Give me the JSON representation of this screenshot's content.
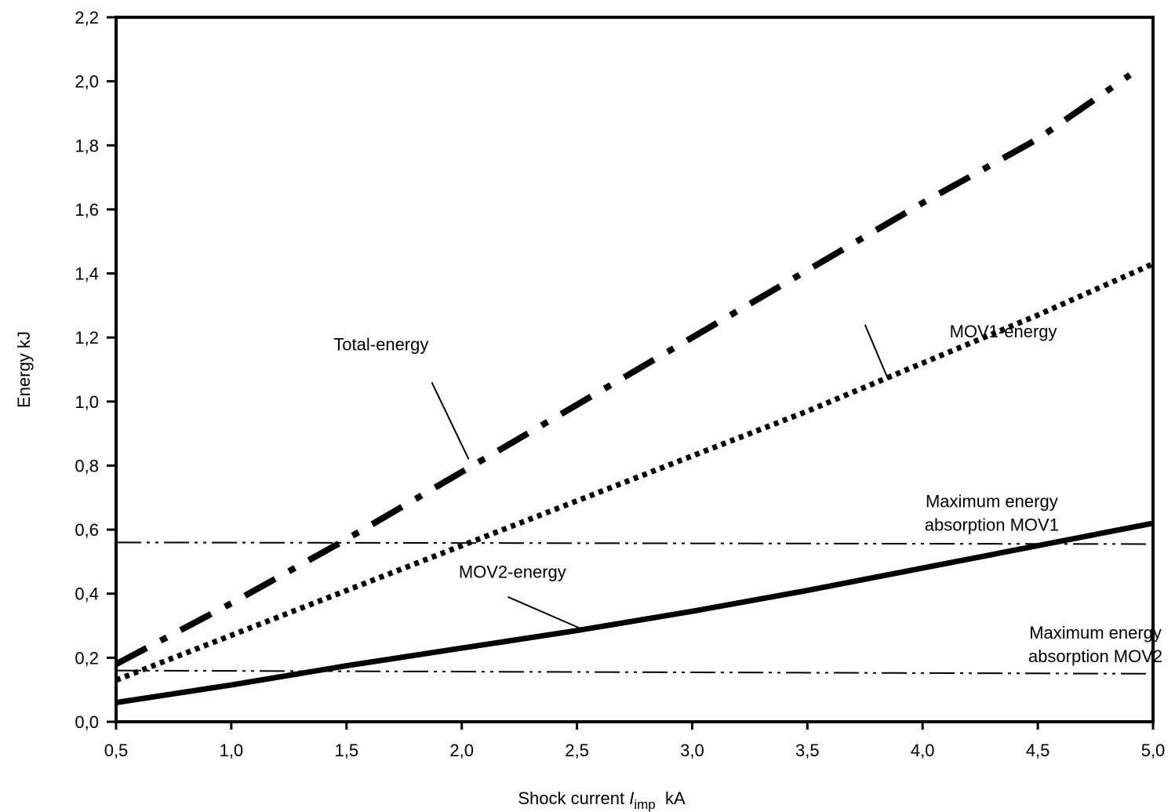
{
  "chart_data": {
    "type": "line",
    "title": "",
    "xlabel": {
      "prefix": "Shock current ",
      "symbol": "I",
      "subscript": "imp",
      "unit": "  kA"
    },
    "ylabel": "Energy  kJ",
    "xlim": [
      0.5,
      5.0
    ],
    "ylim": [
      0.0,
      2.2
    ],
    "xticks": [
      0.5,
      1.0,
      1.5,
      2.0,
      2.5,
      3.0,
      3.5,
      4.0,
      4.5,
      5.0
    ],
    "xtick_labels": [
      "0,5",
      "1,0",
      "1,5",
      "2,0",
      "2,5",
      "3,0",
      "3,5",
      "4,0",
      "4,5",
      "5,0"
    ],
    "yticks": [
      0.0,
      0.2,
      0.4,
      0.6,
      0.8,
      1.0,
      1.2,
      1.4,
      1.6,
      1.8,
      2.0,
      2.2
    ],
    "ytick_labels": [
      "0,0",
      "0,2",
      "0,4",
      "0,6",
      "0,8",
      "1,0",
      "1,2",
      "1,4",
      "1,6",
      "1,8",
      "2,0",
      "2,2"
    ],
    "grid": false,
    "series": [
      {
        "key": "total",
        "name": "Total-energy",
        "style": "dash-dot-thick",
        "color": "#000000",
        "points": [
          [
            0.5,
            0.18
          ],
          [
            1.0,
            0.37
          ],
          [
            1.5,
            0.57
          ],
          [
            2.0,
            0.78
          ],
          [
            2.5,
            0.99
          ],
          [
            3.0,
            1.2
          ],
          [
            3.5,
            1.41
          ],
          [
            4.0,
            1.62
          ],
          [
            4.5,
            1.82
          ],
          [
            4.9,
            2.02
          ]
        ]
      },
      {
        "key": "mov1",
        "name": "MOV1-energy",
        "style": "dotted",
        "color": "#000000",
        "points": [
          [
            0.5,
            0.13
          ],
          [
            1.0,
            0.27
          ],
          [
            1.5,
            0.41
          ],
          [
            2.0,
            0.55
          ],
          [
            2.5,
            0.69
          ],
          [
            3.0,
            0.83
          ],
          [
            3.5,
            0.97
          ],
          [
            4.0,
            1.12
          ],
          [
            4.5,
            1.27
          ],
          [
            5.0,
            1.43
          ]
        ]
      },
      {
        "key": "mov2",
        "name": "MOV2-energy",
        "style": "solid-thick",
        "color": "#000000",
        "points": [
          [
            0.5,
            0.06
          ],
          [
            1.0,
            0.115
          ],
          [
            1.5,
            0.175
          ],
          [
            2.0,
            0.23
          ],
          [
            2.5,
            0.285
          ],
          [
            3.0,
            0.345
          ],
          [
            3.5,
            0.41
          ],
          [
            4.0,
            0.48
          ],
          [
            4.5,
            0.55
          ],
          [
            5.0,
            0.62
          ]
        ]
      },
      {
        "key": "max1",
        "name": "Maximum energy absorption MOV1",
        "style": "dash-dot-dot-thin",
        "color": "#000000",
        "points": [
          [
            0.5,
            0.56
          ],
          [
            5.0,
            0.555
          ]
        ]
      },
      {
        "key": "max2",
        "name": "Maximum energy absorption MOV2",
        "style": "dash-dot-dot-thin",
        "color": "#000000",
        "points": [
          [
            0.5,
            0.16
          ],
          [
            5.0,
            0.15
          ]
        ]
      }
    ],
    "annotations": [
      {
        "key": "total",
        "lines": [
          "Total-energy"
        ],
        "text_at": [
          1.65,
          1.16
        ],
        "leader_from": [
          1.87,
          1.06
        ],
        "leader_to": [
          2.03,
          0.82
        ]
      },
      {
        "key": "mov1",
        "lines": [
          "MOV1-energy"
        ],
        "text_at": [
          4.35,
          1.2
        ],
        "leader_from": [
          3.75,
          1.24
        ],
        "leader_to": [
          3.85,
          1.07
        ]
      },
      {
        "key": "max1",
        "lines": [
          "Maximum energy",
          "absorption MOV1"
        ],
        "text_at": [
          4.3,
          0.67
        ],
        "leader_from": null,
        "leader_to": null
      },
      {
        "key": "mov2",
        "lines": [
          "MOV2-energy"
        ],
        "text_at": [
          2.22,
          0.45
        ],
        "leader_from": [
          2.2,
          0.39
        ],
        "leader_to": [
          2.52,
          0.29
        ]
      },
      {
        "key": "max2",
        "lines": [
          "Maximum energy",
          "absorption MOV2"
        ],
        "text_at": [
          4.75,
          0.26
        ],
        "leader_from": null,
        "leader_to": null
      }
    ]
  }
}
